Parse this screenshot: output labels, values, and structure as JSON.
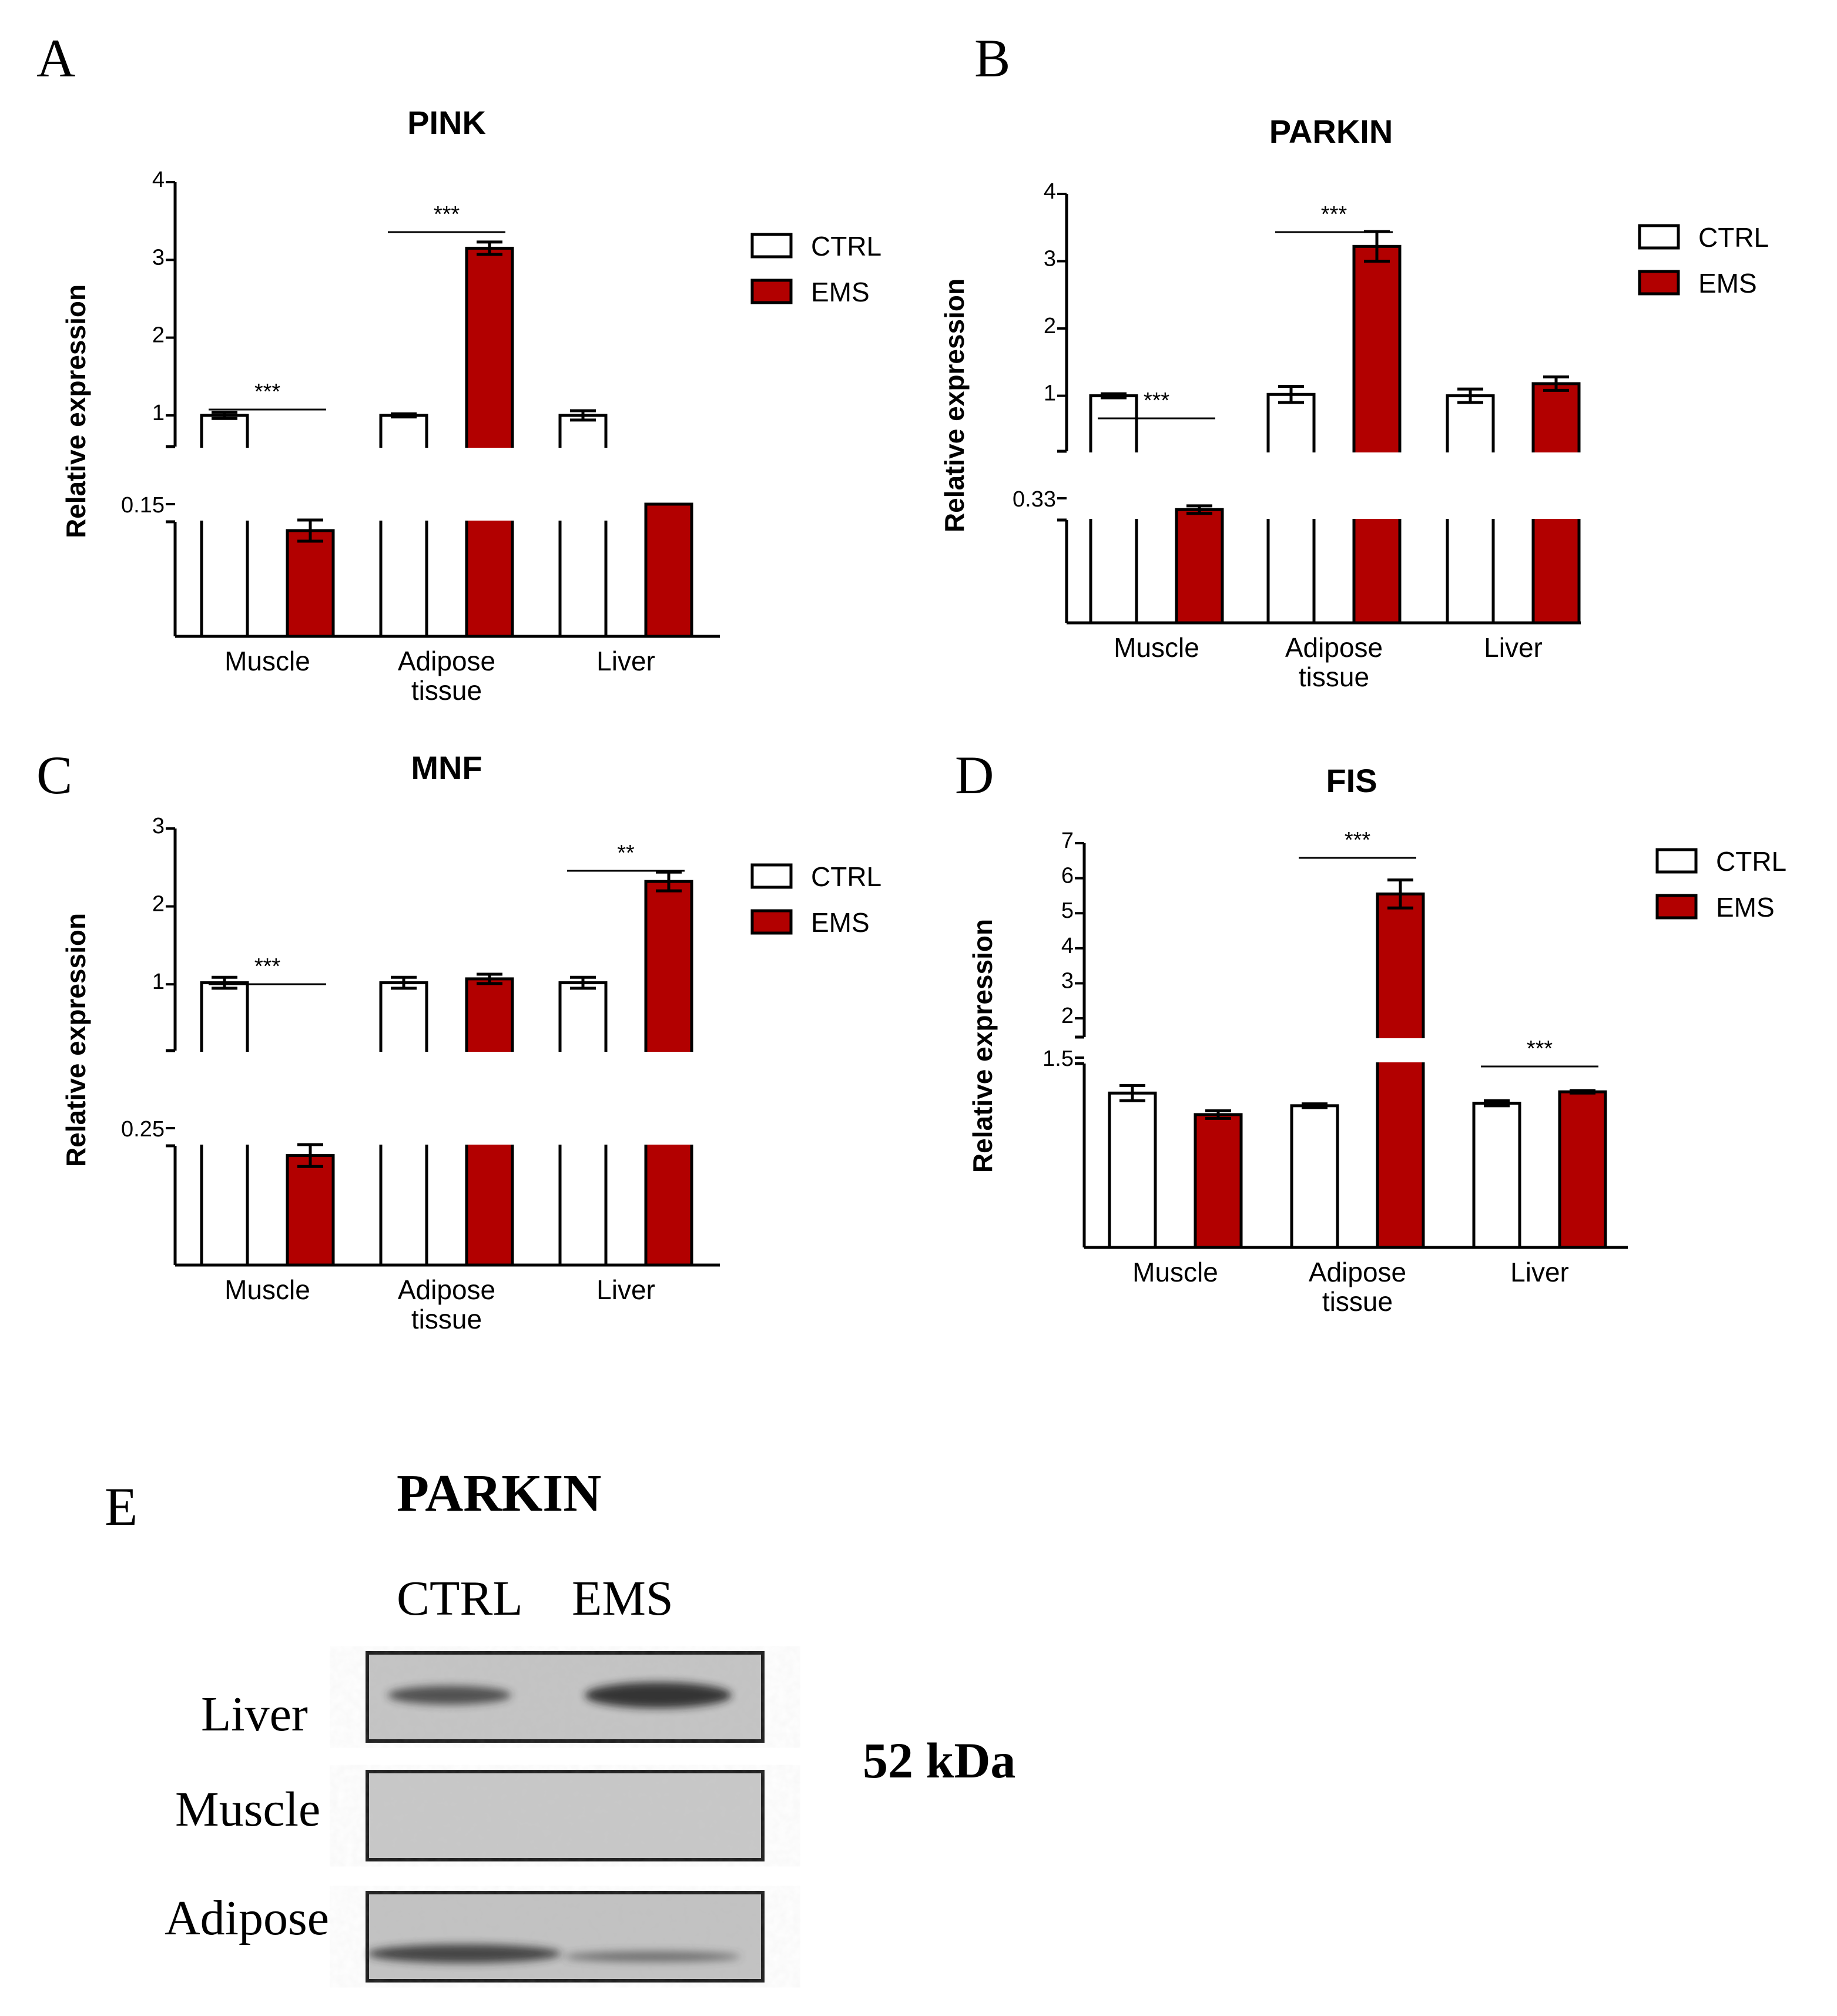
{
  "colors": {
    "ctrl": "#ffffff",
    "ems": "#b20000",
    "axis": "#000000"
  },
  "legend": [
    "CTRL",
    "EMS"
  ],
  "chart_data": [
    {
      "id": "A",
      "type": "bar",
      "panel_letter": "A",
      "title": "PINK",
      "ylabel": "Relative expression",
      "xlabel": "",
      "categories": [
        [
          "Muscle"
        ],
        [
          "Adipose",
          "tissue"
        ],
        [
          "Liver"
        ]
      ],
      "axis_break": true,
      "lower_ticks": [
        "0.15"
      ],
      "upper_ticks": [
        1,
        2,
        3,
        4
      ],
      "ylim_upper": [
        0.75,
        4
      ],
      "series": [
        {
          "name": "CTRL",
          "values": [
            1.0,
            1.0,
            1.0
          ],
          "errors": [
            0.04,
            0.02,
            0.06
          ]
        },
        {
          "name": "EMS",
          "values": [
            0.12,
            3.15,
            0.7
          ],
          "errors": [
            0.012,
            0.08,
            0
          ]
        }
      ],
      "significance": [
        {
          "category": 0,
          "label": "***"
        },
        {
          "category": 1,
          "label": "***"
        }
      ]
    },
    {
      "id": "B",
      "type": "bar",
      "panel_letter": "B",
      "title": "PARKIN",
      "ylabel": "Relative expression",
      "xlabel": "",
      "categories": [
        [
          "Muscle"
        ],
        [
          "Adipose",
          "tissue"
        ],
        [
          "Liver"
        ]
      ],
      "axis_break": true,
      "lower_ticks": [
        "0.33"
      ],
      "upper_ticks": [
        1,
        2,
        3,
        4
      ],
      "ylim_upper": [
        0.35,
        4
      ],
      "series": [
        {
          "name": "CTRL",
          "values": [
            1.0,
            1.02,
            1.0
          ],
          "errors": [
            0.03,
            0.12,
            0.1
          ]
        },
        {
          "name": "EMS",
          "values": [
            0.3,
            3.22,
            1.18
          ],
          "errors": [
            0.01,
            0.22,
            0.1
          ]
        }
      ],
      "significance": [
        {
          "category": 0,
          "label": "***"
        },
        {
          "category": 1,
          "label": "***"
        }
      ]
    },
    {
      "id": "C",
      "type": "bar",
      "panel_letter": "C",
      "title": "MNF",
      "ylabel": "Relative expression",
      "xlabel": "",
      "categories": [
        [
          "Muscle"
        ],
        [
          "Adipose",
          "tissue"
        ],
        [
          "Liver"
        ]
      ],
      "axis_break": true,
      "lower_ticks": [
        "0.25"
      ],
      "upper_ticks": [
        1,
        2,
        3
      ],
      "ylim_upper": [
        0.3,
        3
      ],
      "series": [
        {
          "name": "CTRL",
          "values": [
            1.02,
            1.02,
            1.02
          ],
          "errors": [
            0.07,
            0.07,
            0.07
          ]
        },
        {
          "name": "EMS",
          "values": [
            0.2,
            1.07,
            2.32
          ],
          "errors": [
            0.02,
            0.06,
            0.12
          ]
        }
      ],
      "significance": [
        {
          "category": 0,
          "label": "***"
        },
        {
          "category": 2,
          "label": "**"
        }
      ]
    },
    {
      "id": "D",
      "type": "bar",
      "panel_letter": "D",
      "title": "FIS",
      "ylabel": "Relative expression",
      "xlabel": "",
      "categories": [
        [
          "Muscle"
        ],
        [
          "Adipose",
          "tissue"
        ],
        [
          "Liver"
        ]
      ],
      "axis_break": true,
      "lower_ticks": [
        "1.5"
      ],
      "upper_ticks": [
        2,
        3,
        4,
        5,
        6,
        7
      ],
      "ylim_upper": [
        1.8,
        7
      ],
      "series": [
        {
          "name": "CTRL",
          "values": [
            1.22,
            1.12,
            1.14
          ],
          "errors": [
            0.06,
            0.015,
            0.02
          ]
        },
        {
          "name": "EMS",
          "values": [
            1.05,
            5.55,
            1.23
          ],
          "errors": [
            0.03,
            0.4,
            0.01
          ]
        }
      ],
      "significance": [
        {
          "category": 1,
          "label": "***"
        },
        {
          "category": 2,
          "label": "***"
        }
      ]
    }
  ],
  "blot": {
    "panel_letter": "E",
    "title": "PARKIN",
    "columns": [
      "CTRL",
      "EMS"
    ],
    "rows": [
      "Liver",
      "Muscle",
      "Adipose"
    ],
    "molecular_weight": "52 kDa"
  }
}
